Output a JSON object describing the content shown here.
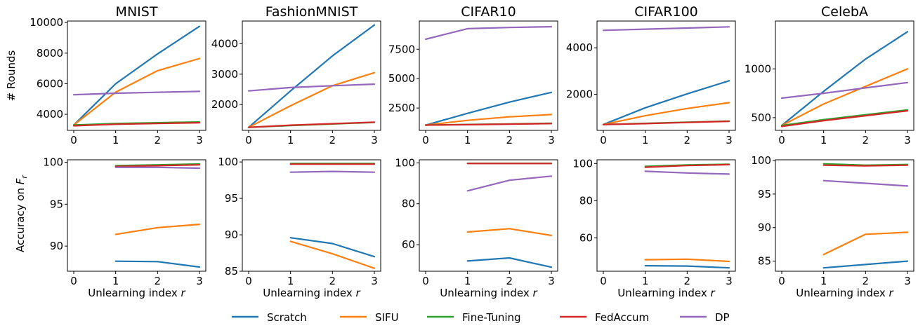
{
  "colors": {
    "Scratch": "#1f77b4",
    "SIFU": "#ff7f0e",
    "Fine-Tuning": "#2ca02c",
    "FedAccum": "#d62728",
    "DP": "#9467bd"
  },
  "labels": {
    "rounds_ylabel": "# Rounds",
    "acc_ylabel_prefix": "Accuracy on ",
    "acc_ylabel_sym": "F",
    "acc_ylabel_sub": "r",
    "xlabel_prefix": "Unlearning index ",
    "xlabel_sym": "r"
  },
  "legend": [
    "Scratch",
    "SIFU",
    "Fine-Tuning",
    "FedAccum",
    "DP"
  ],
  "chart_data": [
    {
      "type": "line",
      "row": "rounds",
      "title": "MNIST",
      "x": [
        0,
        1,
        2,
        3
      ],
      "ylim": [
        2950,
        10100
      ],
      "yticks": [
        4000,
        6000,
        8000,
        10000
      ],
      "series": [
        {
          "name": "Scratch",
          "x": [
            0,
            1,
            2,
            3
          ],
          "values": [
            3300,
            6000,
            7950,
            9750
          ]
        },
        {
          "name": "SIFU",
          "x": [
            0,
            1,
            2,
            3
          ],
          "values": [
            3300,
            5450,
            6850,
            7650
          ]
        },
        {
          "name": "Fine-Tuning",
          "x": [
            0,
            1,
            2,
            3
          ],
          "values": [
            3300,
            3400,
            3450,
            3500
          ]
        },
        {
          "name": "FedAccum",
          "x": [
            0,
            1,
            2,
            3
          ],
          "values": [
            3250,
            3350,
            3400,
            3450
          ]
        },
        {
          "name": "DP",
          "x": [
            0,
            1,
            2,
            3
          ],
          "values": [
            5280,
            5380,
            5440,
            5500
          ]
        }
      ]
    },
    {
      "type": "line",
      "row": "rounds",
      "title": "FashionMNIST",
      "x": [
        0,
        1,
        2,
        3
      ],
      "ylim": [
        1150,
        4750
      ],
      "yticks": [
        2000,
        3000,
        4000
      ],
      "series": [
        {
          "name": "Scratch",
          "x": [
            0,
            1,
            2,
            3
          ],
          "values": [
            1250,
            2450,
            3600,
            4620
          ]
        },
        {
          "name": "SIFU",
          "x": [
            0,
            1,
            2,
            3
          ],
          "values": [
            1250,
            1960,
            2620,
            3050
          ]
        },
        {
          "name": "Fine-Tuning",
          "x": [
            0,
            1,
            2,
            3
          ],
          "values": [
            1250,
            1310,
            1360,
            1410
          ]
        },
        {
          "name": "FedAccum",
          "x": [
            0,
            1,
            2,
            3
          ],
          "values": [
            1250,
            1320,
            1370,
            1420
          ]
        },
        {
          "name": "DP",
          "x": [
            0,
            1,
            2,
            3
          ],
          "values": [
            2450,
            2560,
            2620,
            2670
          ]
        }
      ]
    },
    {
      "type": "line",
      "row": "rounds",
      "title": "CIFAR10",
      "x": [
        0,
        1,
        2,
        3
      ],
      "ylim": [
        600,
        9900
      ],
      "yticks": [
        2500,
        5000,
        7500
      ],
      "series": [
        {
          "name": "Scratch",
          "x": [
            0,
            1,
            2,
            3
          ],
          "values": [
            1050,
            2050,
            3000,
            3830
          ]
        },
        {
          "name": "SIFU",
          "x": [
            0,
            1,
            2,
            3
          ],
          "values": [
            1050,
            1450,
            1750,
            1950
          ]
        },
        {
          "name": "Fine-Tuning",
          "x": [
            0,
            1,
            2,
            3
          ],
          "values": [
            1050,
            1100,
            1150,
            1200
          ]
        },
        {
          "name": "FedAccum",
          "x": [
            0,
            1,
            2,
            3
          ],
          "values": [
            1050,
            1080,
            1130,
            1180
          ]
        },
        {
          "name": "DP",
          "x": [
            0,
            1,
            2,
            3
          ],
          "values": [
            8350,
            9250,
            9350,
            9420
          ]
        }
      ]
    },
    {
      "type": "line",
      "row": "rounds",
      "title": "CIFAR100",
      "x": [
        0,
        1,
        2,
        3
      ],
      "ylim": [
        450,
        5150
      ],
      "yticks": [
        2000,
        4000
      ],
      "series": [
        {
          "name": "Scratch",
          "x": [
            0,
            1,
            2,
            3
          ],
          "values": [
            700,
            1420,
            2020,
            2580
          ]
        },
        {
          "name": "SIFU",
          "x": [
            0,
            1,
            2,
            3
          ],
          "values": [
            700,
            1080,
            1390,
            1640
          ]
        },
        {
          "name": "Fine-Tuning",
          "x": [
            0,
            1,
            2,
            3
          ],
          "values": [
            700,
            750,
            800,
            850
          ]
        },
        {
          "name": "FedAccum",
          "x": [
            0,
            1,
            2,
            3
          ],
          "values": [
            700,
            740,
            790,
            840
          ]
        },
        {
          "name": "DP",
          "x": [
            0,
            1,
            2,
            3
          ],
          "values": [
            4750,
            4800,
            4850,
            4900
          ]
        }
      ]
    },
    {
      "type": "line",
      "row": "rounds",
      "title": "CelebA",
      "x": [
        0,
        1,
        2,
        3
      ],
      "ylim": [
        370,
        1490
      ],
      "yticks": [
        500,
        1000
      ],
      "series": [
        {
          "name": "Scratch",
          "x": [
            0,
            1,
            2,
            3
          ],
          "values": [
            420,
            770,
            1100,
            1380
          ]
        },
        {
          "name": "SIFU",
          "x": [
            0,
            1,
            2,
            3
          ],
          "values": [
            420,
            640,
            820,
            1000
          ]
        },
        {
          "name": "Fine-Tuning",
          "x": [
            0,
            1,
            2,
            3
          ],
          "values": [
            420,
            480,
            530,
            580
          ]
        },
        {
          "name": "FedAccum",
          "x": [
            0,
            1,
            2,
            3
          ],
          "values": [
            410,
            470,
            520,
            570
          ]
        },
        {
          "name": "DP",
          "x": [
            0,
            1,
            2,
            3
          ],
          "values": [
            700,
            750,
            805,
            860
          ]
        }
      ]
    },
    {
      "type": "line",
      "row": "accuracy",
      "title": "",
      "x": [
        0,
        1,
        2,
        3
      ],
      "ylim": [
        87,
        100.3
      ],
      "yticks": [
        90,
        95,
        100
      ],
      "series": [
        {
          "name": "Scratch",
          "x": [
            1,
            2,
            3
          ],
          "values": [
            88.2,
            88.15,
            87.5
          ]
        },
        {
          "name": "SIFU",
          "x": [
            1,
            2,
            3
          ],
          "values": [
            91.4,
            92.2,
            92.6
          ]
        },
        {
          "name": "Fine-Tuning",
          "x": [
            1,
            2,
            3
          ],
          "values": [
            99.6,
            99.7,
            99.8
          ]
        },
        {
          "name": "FedAccum",
          "x": [
            1,
            2,
            3
          ],
          "values": [
            99.5,
            99.6,
            99.7
          ]
        },
        {
          "name": "DP",
          "x": [
            1,
            2,
            3
          ],
          "values": [
            99.4,
            99.4,
            99.3
          ]
        }
      ]
    },
    {
      "type": "line",
      "row": "accuracy",
      "title": "",
      "x": [
        0,
        1,
        2,
        3
      ],
      "ylim": [
        85,
        100.3
      ],
      "yticks": [
        85,
        90,
        95,
        100
      ],
      "series": [
        {
          "name": "Scratch",
          "x": [
            1,
            2,
            3
          ],
          "values": [
            89.6,
            88.8,
            87.0
          ]
        },
        {
          "name": "SIFU",
          "x": [
            1,
            2,
            3
          ],
          "values": [
            89.1,
            87.4,
            85.4
          ]
        },
        {
          "name": "Fine-Tuning",
          "x": [
            1,
            2,
            3
          ],
          "values": [
            99.8,
            99.8,
            99.8
          ]
        },
        {
          "name": "FedAccum",
          "x": [
            1,
            2,
            3
          ],
          "values": [
            99.7,
            99.7,
            99.7
          ]
        },
        {
          "name": "DP",
          "x": [
            1,
            2,
            3
          ],
          "values": [
            98.6,
            98.7,
            98.6
          ]
        }
      ]
    },
    {
      "type": "line",
      "row": "accuracy",
      "title": "",
      "x": [
        0,
        1,
        2,
        3
      ],
      "ylim": [
        47,
        101.5
      ],
      "yticks": [
        60,
        80,
        100
      ],
      "series": [
        {
          "name": "Scratch",
          "x": [
            1,
            2,
            3
          ],
          "values": [
            52.0,
            53.5,
            49.0
          ]
        },
        {
          "name": "SIFU",
          "x": [
            1,
            2,
            3
          ],
          "values": [
            66.2,
            67.8,
            64.5
          ]
        },
        {
          "name": "Fine-Tuning",
          "x": [
            1,
            2,
            3
          ],
          "values": [
            99.8,
            99.8,
            99.8
          ]
        },
        {
          "name": "FedAccum",
          "x": [
            1,
            2,
            3
          ],
          "values": [
            99.7,
            99.7,
            99.7
          ]
        },
        {
          "name": "DP",
          "x": [
            1,
            2,
            3
          ],
          "values": [
            86.3,
            91.5,
            93.5
          ]
        }
      ]
    },
    {
      "type": "line",
      "row": "accuracy",
      "title": "",
      "x": [
        0,
        1,
        2,
        3
      ],
      "ylim": [
        42,
        102
      ],
      "yticks": [
        60,
        80,
        100
      ],
      "series": [
        {
          "name": "Scratch",
          "x": [
            1,
            2,
            3
          ],
          "values": [
            45.0,
            44.8,
            43.8
          ]
        },
        {
          "name": "SIFU",
          "x": [
            1,
            2,
            3
          ],
          "values": [
            48.2,
            48.5,
            47.3
          ]
        },
        {
          "name": "Fine-Tuning",
          "x": [
            1,
            2,
            3
          ],
          "values": [
            98.5,
            99.2,
            99.6
          ]
        },
        {
          "name": "FedAccum",
          "x": [
            1,
            2,
            3
          ],
          "values": [
            98.0,
            98.9,
            99.4
          ]
        },
        {
          "name": "DP",
          "x": [
            1,
            2,
            3
          ],
          "values": [
            95.8,
            94.9,
            94.3
          ]
        }
      ]
    },
    {
      "type": "line",
      "row": "accuracy",
      "title": "",
      "x": [
        0,
        1,
        2,
        3
      ],
      "ylim": [
        83.5,
        100.1
      ],
      "yticks": [
        85,
        90,
        95,
        100
      ],
      "series": [
        {
          "name": "Scratch",
          "x": [
            1,
            2,
            3
          ],
          "values": [
            84.0,
            84.5,
            85.0
          ]
        },
        {
          "name": "SIFU",
          "x": [
            1,
            2,
            3
          ],
          "values": [
            86.0,
            89.0,
            89.3
          ]
        },
        {
          "name": "Fine-Tuning",
          "x": [
            1,
            2,
            3
          ],
          "values": [
            99.5,
            99.3,
            99.4
          ]
        },
        {
          "name": "FedAccum",
          "x": [
            1,
            2,
            3
          ],
          "values": [
            99.3,
            99.2,
            99.3
          ]
        },
        {
          "name": "DP",
          "x": [
            1,
            2,
            3
          ],
          "values": [
            97.0,
            96.6,
            96.2
          ]
        }
      ]
    }
  ]
}
